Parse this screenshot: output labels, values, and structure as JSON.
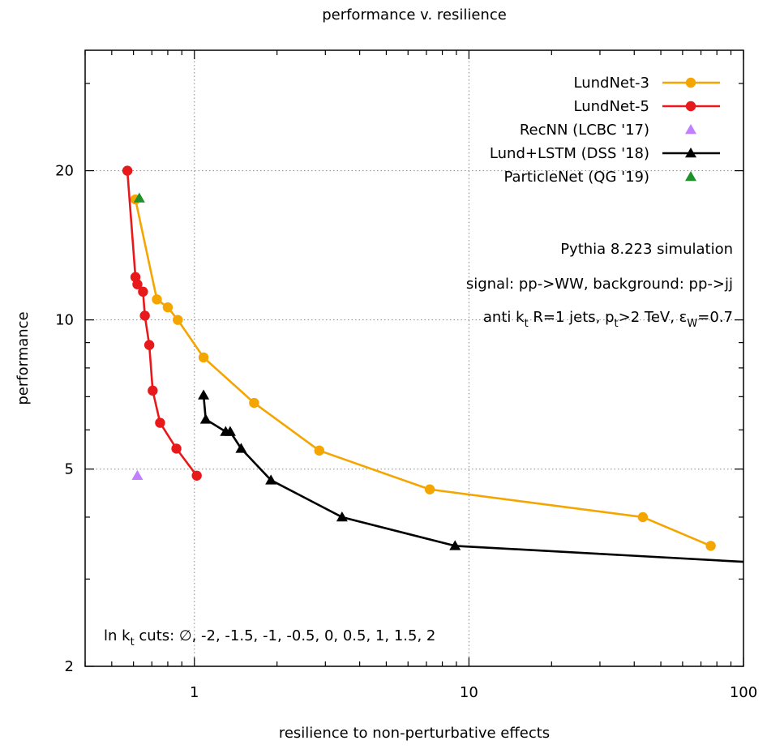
{
  "chart_data": {
    "type": "line",
    "title": "performance v. resilience",
    "xlabel": "resilience to non-perturbative effects",
    "ylabel": "performance",
    "x_scale": "log",
    "y_scale": "log",
    "xlim": [
      0.4,
      100
    ],
    "ylim": [
      2,
      35
    ],
    "xticks": [
      {
        "value": 1,
        "label": "1"
      },
      {
        "value": 10,
        "label": "10"
      },
      {
        "value": 100,
        "label": "100"
      }
    ],
    "yticks": [
      {
        "value": 2,
        "label": "2"
      },
      {
        "value": 5,
        "label": "5"
      },
      {
        "value": 10,
        "label": "10"
      },
      {
        "value": 20,
        "label": "20"
      }
    ],
    "grid": "dotted at major ticks",
    "legend_position": "top-right",
    "series": [
      {
        "name": "LundNet-3",
        "color": "#f5a500",
        "marker": "circle",
        "line": true,
        "x": [
          0.61,
          0.73,
          0.8,
          0.87,
          1.08,
          1.65,
          2.85,
          7.2,
          43,
          76
        ],
        "y": [
          17.5,
          11.0,
          10.6,
          10.0,
          8.4,
          6.8,
          5.45,
          4.55,
          4.0,
          3.5
        ]
      },
      {
        "name": "LundNet-5",
        "color": "#e8191b",
        "marker": "circle",
        "line": true,
        "x": [
          0.57,
          0.61,
          0.62,
          0.65,
          0.66,
          0.685,
          0.705,
          0.75,
          0.86,
          1.02
        ],
        "y": [
          20.0,
          12.2,
          11.8,
          11.4,
          10.2,
          8.9,
          7.2,
          6.2,
          5.5,
          4.85
        ]
      },
      {
        "name": "RecNN (LCBC '17)",
        "color": "#c080ff",
        "marker": "triangle",
        "line": false,
        "x": [
          0.62
        ],
        "y": [
          4.85
        ]
      },
      {
        "name": "Lund+LSTM (DSS '18)",
        "color": "#000000",
        "marker": "triangle",
        "line": true,
        "x": [
          1.08,
          1.1,
          1.3,
          1.35,
          1.48,
          1.9,
          3.45,
          8.9,
          100
        ],
        "y": [
          7.05,
          6.3,
          5.95,
          5.95,
          5.5,
          4.75,
          4.0,
          3.5,
          3.25
        ]
      },
      {
        "name": "ParticleNet (QG '19)",
        "color": "#20902a",
        "marker": "triangle",
        "line": false,
        "x": [
          0.63
        ],
        "y": [
          17.6
        ]
      }
    ],
    "annotations": {
      "line1": "Pythia 8.223 simulation",
      "line2": "signal: pp->WW, background: pp->jj",
      "line3": {
        "p1": "anti k",
        "s1": "t",
        "p2": " R=1 jets, p",
        "s2": "t",
        "p3": ">2 TeV, ε",
        "s3": "W",
        "p4": "=0.7"
      },
      "cuts": {
        "p1": "ln k",
        "s1": "t",
        "p2": " cuts: ∅, -2, -1.5, -1, -0.5, 0, 0.5, 1, 1.5, 2"
      }
    }
  }
}
